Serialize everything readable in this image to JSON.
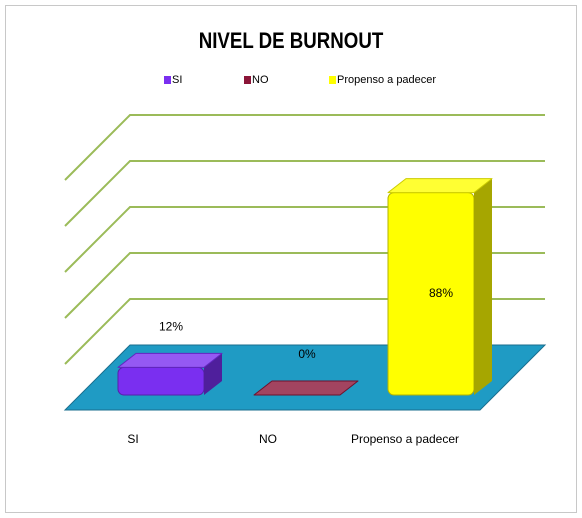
{
  "chart_data": {
    "type": "bar3d",
    "title": "NIVEL DE BURNOUT",
    "categories": [
      "SI",
      "NO",
      "Propenso a padecer"
    ],
    "values": [
      12,
      0,
      88
    ],
    "value_labels": [
      "12%",
      "0%",
      "88%"
    ],
    "colors": [
      "#7a2ff0",
      "#8b1538",
      "#ffff00"
    ],
    "ylim": [
      0,
      100
    ],
    "yticks": [
      0,
      20,
      40,
      60,
      80,
      100
    ],
    "grid": true,
    "grid_color": "#9bbb59",
    "floor_color": "#1f9bc4",
    "legend": "top"
  }
}
